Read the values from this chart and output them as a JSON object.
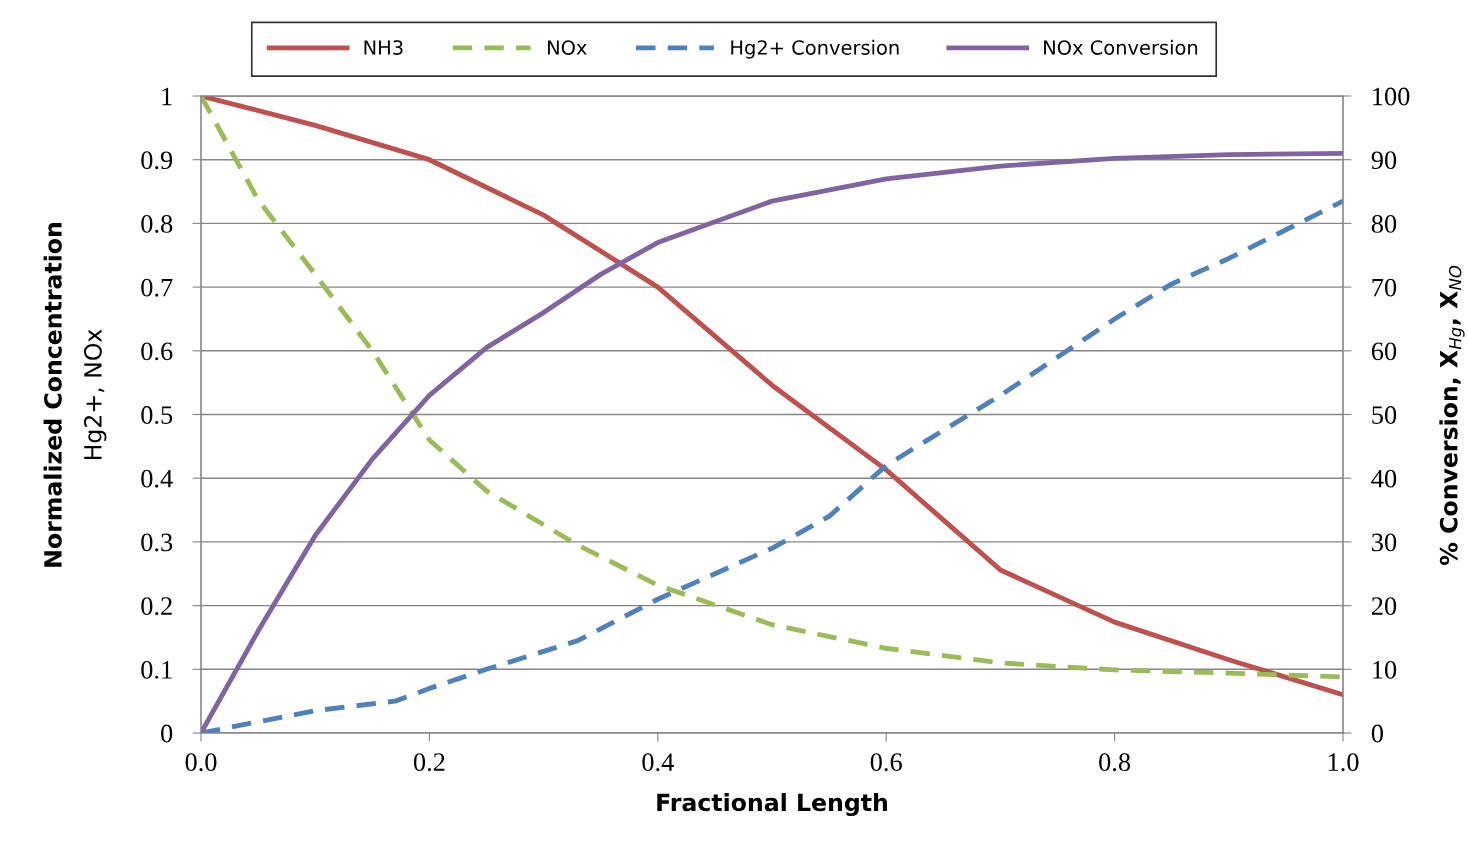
{
  "chart_data": {
    "type": "line",
    "xlabel": "Fractional Length",
    "ylabel": "Normalized Concentration\nHg2+, NOx",
    "y2label": "% Conversion, X$_{Hg}$, X$_{NO}$",
    "xlim": [
      0,
      1
    ],
    "xticks": [
      {
        "value": 0,
        "label": "0.0"
      },
      {
        "value": 0.2,
        "label": "0.2"
      },
      {
        "value": 0.4,
        "label": "0.4"
      },
      {
        "value": 0.6,
        "label": "0.6"
      },
      {
        "value": 0.8,
        "label": "0.8"
      },
      {
        "value": 1,
        "label": "1.0"
      }
    ],
    "ylim": [
      0,
      1
    ],
    "yticks": [
      0,
      0.1,
      0.2,
      0.3,
      0.4,
      0.5,
      0.6,
      0.7,
      0.8,
      0.9,
      1
    ],
    "y2lim": [
      0,
      100
    ],
    "y2ticks": [
      0,
      10,
      20,
      30,
      40,
      50,
      60,
      70,
      80,
      90,
      100
    ],
    "grid": "y",
    "legend": "top",
    "marker": "none",
    "series": [
      {
        "name": "NH3",
        "color": "#c0504d",
        "line_style": "solid",
        "x": [
          0,
          0.1,
          0.2,
          0.3,
          0.4,
          0.5,
          0.6,
          0.7,
          0.8,
          0.9,
          1.0
        ],
        "values": [
          1,
          0.954,
          0.9,
          0.813,
          0.7,
          0.546,
          0.413,
          0.256,
          0.174,
          0.115,
          0.06
        ]
      },
      {
        "name": "NOx",
        "color": "#9bbb59",
        "line_style": "dashed",
        "x": [
          0,
          0.05,
          0.1,
          0.15,
          0.2,
          0.25,
          0.33,
          0.4,
          0.5,
          0.6,
          0.7,
          0.8,
          0.9,
          1.0
        ],
        "values": [
          1,
          0.837,
          0.72,
          0.6,
          0.46,
          0.38,
          0.295,
          0.232,
          0.17,
          0.133,
          0.11,
          0.099,
          0.094,
          0.088
        ]
      },
      {
        "name": "Hg2+ Conversion",
        "color": "#4f81bd",
        "line_style": "dashed",
        "axis": "y2",
        "x": [
          0,
          0.1,
          0.17,
          0.2,
          0.25,
          0.33,
          0.4,
          0.5,
          0.55,
          0.6,
          0.7,
          0.8,
          0.85,
          0.9,
          1.0
        ],
        "values": [
          0,
          3.5,
          5,
          7,
          10,
          14.5,
          21,
          29,
          34,
          42,
          53,
          65,
          70.5,
          74.5,
          83.5
        ]
      },
      {
        "name": "NOx Conversion",
        "color": "#8064a2",
        "line_style": "solid",
        "axis": "y2",
        "x": [
          0,
          0.05,
          0.1,
          0.15,
          0.2,
          0.25,
          0.3,
          0.35,
          0.4,
          0.5,
          0.6,
          0.7,
          0.8,
          0.9,
          1.0
        ],
        "values": [
          0,
          16,
          31,
          43,
          53,
          60.5,
          66,
          72,
          77,
          83.5,
          87,
          89,
          90.2,
          90.8,
          91
        ]
      }
    ]
  }
}
